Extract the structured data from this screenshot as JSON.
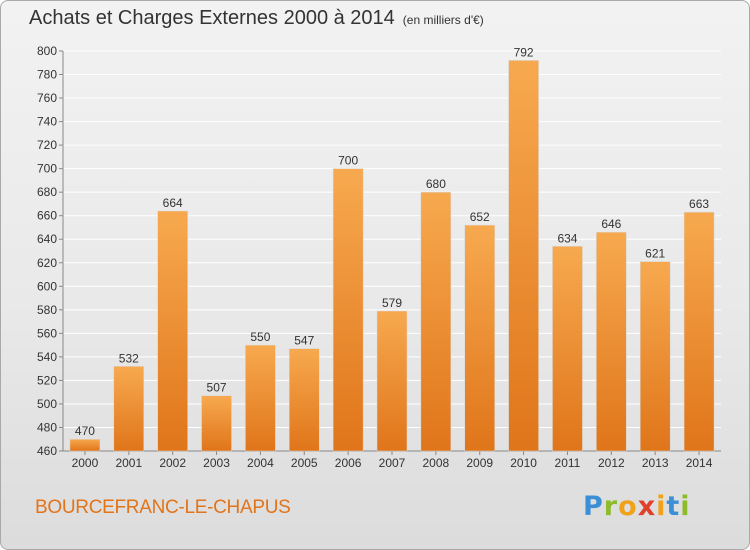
{
  "title": "Achats et Charges Externes 2000 à 2014",
  "subtitle": "(en milliers d'€)",
  "city": "BOURCEFRANC-LE-CHAPUS",
  "logo": {
    "text": "Proxiti",
    "colors": [
      "#3a8fd6",
      "#8dbb2a",
      "#f0a21b",
      "#e0402b",
      "#f0a21b",
      "#3a8fd6",
      "#8dbb2a"
    ]
  },
  "colors": {
    "bar_top": "#f7a94f",
    "bar_bottom": "#e0751a",
    "accent": "#e2741a",
    "grid": "#ffffff"
  },
  "chart_data": {
    "type": "bar",
    "categories": [
      "2000",
      "2001",
      "2002",
      "2003",
      "2004",
      "2005",
      "2006",
      "2007",
      "2008",
      "2009",
      "2010",
      "2011",
      "2012",
      "2013",
      "2014"
    ],
    "values": [
      470,
      532,
      664,
      507,
      550,
      547,
      700,
      579,
      680,
      652,
      792,
      634,
      646,
      621,
      663
    ],
    "ylim": [
      460,
      800
    ],
    "yticks": [
      460,
      480,
      500,
      520,
      540,
      560,
      580,
      600,
      620,
      640,
      660,
      680,
      700,
      720,
      740,
      760,
      780,
      800
    ],
    "grid": true,
    "xlabel": "",
    "ylabel": ""
  }
}
